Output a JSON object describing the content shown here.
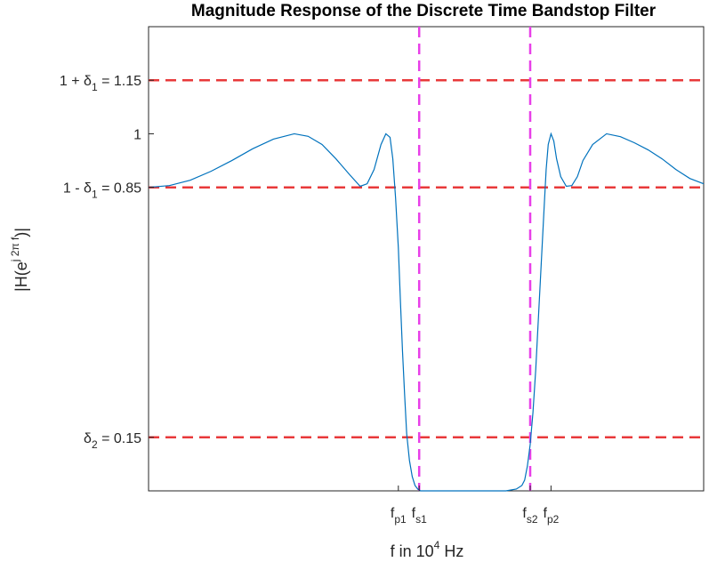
{
  "chart_data": {
    "type": "line",
    "title": "Magnitude Response of the Discrete Time Bandstop Filter",
    "xlabel": {
      "base": "f in 10",
      "sup": "4",
      "unit": " Hz"
    },
    "ylabel": {
      "prefix": "|H(e",
      "sup": "j 2π f",
      "suffix": ")|"
    },
    "xlim": [
      0,
      8
    ],
    "ylim": [
      0,
      1.3
    ],
    "x_ticks": [
      {
        "x": 3.6,
        "main": "f",
        "sub": "p1"
      },
      {
        "x": 3.9,
        "main": "f",
        "sub": "s1"
      },
      {
        "x": 5.5,
        "main": "f",
        "sub": "s2"
      },
      {
        "x": 5.8,
        "main": "f",
        "sub": "p2"
      }
    ],
    "y_ticks": [
      {
        "y": 1.15,
        "pre": "1 + δ",
        "sub": "1",
        "post": " = 1.15"
      },
      {
        "y": 1.0,
        "pre": "1",
        "sub": "",
        "post": ""
      },
      {
        "y": 0.85,
        "pre": "1 - δ",
        "sub": "1",
        "post": " = 0.85"
      },
      {
        "y": 0.15,
        "pre": "δ",
        "sub": "2",
        "post": " = 0.15"
      }
    ],
    "reference_lines": {
      "horizontal": [
        1.15,
        0.85,
        0.15
      ],
      "horizontal_color": "#e8393a",
      "vertical": [
        3.9,
        5.5
      ],
      "vertical_color": "#e83fe8"
    },
    "series": [
      {
        "color": "#0072bd",
        "x": [
          0.0,
          0.3,
          0.6,
          0.9,
          1.2,
          1.5,
          1.8,
          2.1,
          2.3,
          2.5,
          2.7,
          2.9,
          3.05,
          3.15,
          3.25,
          3.35,
          3.42,
          3.48,
          3.52,
          3.56,
          3.6,
          3.63,
          3.66,
          3.69,
          3.72,
          3.76,
          3.8,
          3.84,
          3.88,
          3.92,
          3.96,
          4.0,
          4.1,
          4.25,
          4.4,
          4.6,
          4.8,
          5.0,
          5.15,
          5.3,
          5.38,
          5.42,
          5.46,
          5.5,
          5.54,
          5.58,
          5.62,
          5.66,
          5.7,
          5.73,
          5.76,
          5.8,
          5.84,
          5.88,
          5.94,
          6.02,
          6.1,
          6.18,
          6.26,
          6.4,
          6.6,
          6.8,
          7.0,
          7.2,
          7.4,
          7.6,
          7.8,
          8.0
        ],
        "y": [
          0.85,
          0.855,
          0.87,
          0.895,
          0.925,
          0.958,
          0.985,
          1.0,
          0.993,
          0.97,
          0.93,
          0.885,
          0.853,
          0.86,
          0.9,
          0.97,
          1.0,
          0.99,
          0.93,
          0.82,
          0.68,
          0.53,
          0.39,
          0.27,
          0.16,
          0.085,
          0.04,
          0.015,
          0.005,
          0.0,
          0.0,
          0.0,
          0.0,
          0.0,
          0.0,
          0.0,
          0.0,
          0.0,
          0.0,
          0.005,
          0.015,
          0.03,
          0.07,
          0.13,
          0.22,
          0.34,
          0.49,
          0.64,
          0.79,
          0.9,
          0.97,
          1.0,
          0.98,
          0.93,
          0.88,
          0.853,
          0.855,
          0.88,
          0.925,
          0.97,
          1.0,
          0.992,
          0.975,
          0.955,
          0.93,
          0.9,
          0.875,
          0.86
        ]
      }
    ]
  }
}
